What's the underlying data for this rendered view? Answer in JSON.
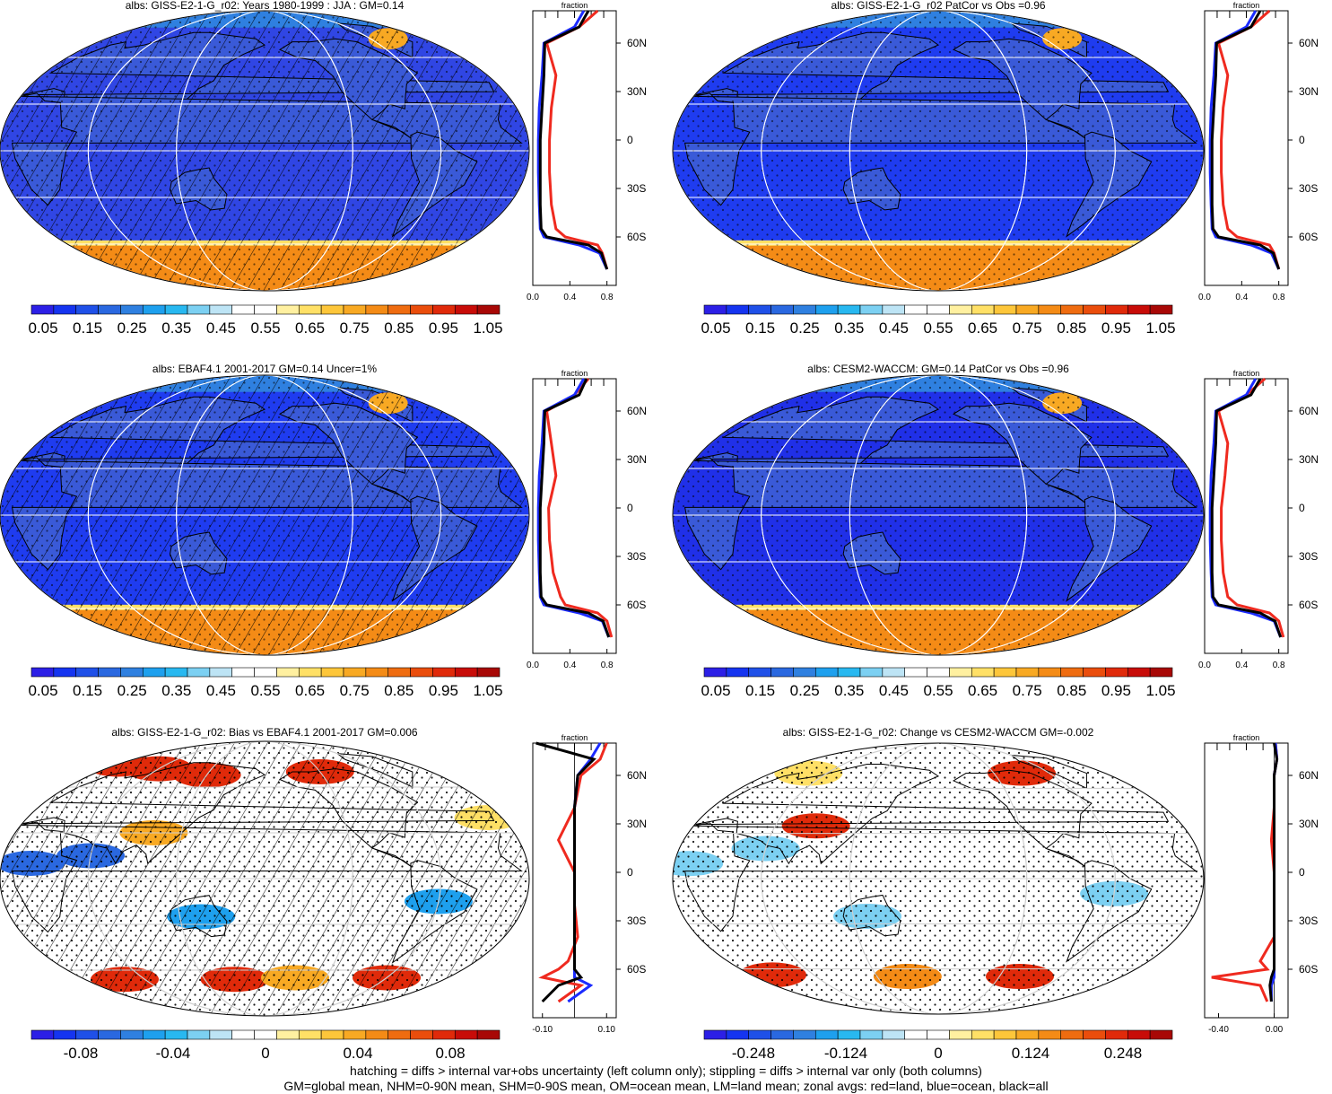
{
  "colors": {
    "land": "#ef2a1f",
    "ocean": "#1b2bff",
    "all": "#000000",
    "grid": "#ffffff",
    "abs_palette": [
      "#2c1fe6",
      "#1534f0",
      "#1f50e8",
      "#2a68e0",
      "#2f80e0",
      "#1ea0ee",
      "#28b8f0",
      "#7cd0f2",
      "#bde4f5",
      "#ffffff",
      "#ffffff",
      "#fff0a0",
      "#ffe066",
      "#fdc63a",
      "#f8a923",
      "#f48b16",
      "#ef6c10",
      "#ea4d0c",
      "#e02a0a",
      "#c80c08",
      "#a80806"
    ],
    "diff_palette": [
      "#2c1fe6",
      "#1534f0",
      "#1f50e8",
      "#2a68e0",
      "#2f80e0",
      "#1ea0ee",
      "#28b8f0",
      "#7cd0f2",
      "#bde4f5",
      "#ffffff",
      "#ffffff",
      "#fff0a0",
      "#ffe066",
      "#fdc63a",
      "#f8a923",
      "#f48b16",
      "#ef6c10",
      "#ea4d0c",
      "#e02a0a",
      "#c80c08",
      "#a80806"
    ]
  },
  "panels": [
    {
      "id": "model",
      "title": "albs: GISS-E2-1-G_r02: Years 1980-1999 : JJA : GM=0.14",
      "fill": "#3046e4",
      "colorbar": {
        "labels": [
          "0.05",
          "0.15",
          "0.25",
          "0.35",
          "0.45",
          "0.55",
          "0.65",
          "0.75",
          "0.85",
          "0.95",
          "1.05"
        ]
      },
      "zonal": {
        "title": "fraction",
        "xticks": [
          "0.0",
          "0.4",
          "0.8"
        ],
        "xrange": [
          0,
          0.9
        ],
        "lat_labels": [
          "60N",
          "30N",
          "0",
          "30S",
          "60S"
        ]
      }
    },
    {
      "id": "model-patcor",
      "title": "albs: GISS-E2-1-G_r02 PatCor vs Obs =0.96",
      "fill": "#1f3cf0",
      "colorbar": {
        "labels": [
          "0.05",
          "0.15",
          "0.25",
          "0.35",
          "0.45",
          "0.55",
          "0.65",
          "0.75",
          "0.85",
          "0.95",
          "1.05"
        ]
      },
      "zonal": {
        "title": "fraction",
        "xticks": [
          "0.0",
          "0.4",
          "0.8"
        ],
        "xrange": [
          0,
          0.9
        ],
        "lat_labels": [
          "60N",
          "30N",
          "0",
          "30S",
          "60S"
        ]
      }
    },
    {
      "id": "obs",
      "title": "albs: EBAF4.1 2001-2017 GM=0.14 Uncer=1%",
      "fill": "#1f3cf0",
      "colorbar": {
        "labels": [
          "0.05",
          "0.15",
          "0.25",
          "0.35",
          "0.45",
          "0.55",
          "0.65",
          "0.75",
          "0.85",
          "0.95",
          "1.05"
        ]
      },
      "zonal": {
        "title": "fraction",
        "xticks": [
          "0.0",
          "0.4",
          "0.8"
        ],
        "xrange": [
          0,
          0.9
        ],
        "lat_labels": [
          "60N",
          "30N",
          "0",
          "30S",
          "60S"
        ]
      }
    },
    {
      "id": "ref-model",
      "title": "albs: CESM2-WACCM: GM=0.14 PatCor vs Obs =0.96",
      "fill": "#2030e8",
      "colorbar": {
        "labels": [
          "0.05",
          "0.15",
          "0.25",
          "0.35",
          "0.45",
          "0.55",
          "0.65",
          "0.75",
          "0.85",
          "0.95",
          "1.05"
        ]
      },
      "zonal": {
        "title": "fraction",
        "xticks": [
          "0.0",
          "0.4",
          "0.8"
        ],
        "xrange": [
          0,
          0.9
        ],
        "lat_labels": [
          "60N",
          "30N",
          "0",
          "30S",
          "60S"
        ]
      }
    },
    {
      "id": "bias",
      "title": "albs: GISS-E2-1-G_r02: Bias vs EBAF4.1 2001-2017 GM=0.006",
      "fill": "#ffffff",
      "colorbar": {
        "labels": [
          "-0.08",
          "-0.04",
          "0",
          "0.04",
          "0.08"
        ]
      },
      "zonal": {
        "title": "fraction",
        "xticks": [
          "-0.10",
          "0.10"
        ],
        "xrange": [
          -0.13,
          0.13
        ],
        "lat_labels": [
          "60N",
          "30N",
          "0",
          "30S",
          "60S"
        ]
      }
    },
    {
      "id": "change",
      "title": "albs: GISS-E2-1-G_r02: Change vs CESM2-WACCM GM=-0.002",
      "fill": "#ffffff",
      "colorbar": {
        "labels": [
          "-0.248",
          "-0.124",
          "0",
          "0.124",
          "0.248"
        ]
      },
      "zonal": {
        "title": "fraction",
        "xticks": [
          "-0.40",
          "0.00"
        ],
        "xrange": [
          -0.5,
          0.1
        ],
        "lat_labels": [
          "60N",
          "30N",
          "0",
          "30S",
          "60S"
        ]
      }
    }
  ],
  "chart_data": [
    {
      "type": "line",
      "panel": "model",
      "x_label": "fraction",
      "lat": [
        -80,
        -70,
        -65,
        -60,
        -55,
        -40,
        -20,
        0,
        20,
        40,
        60,
        70,
        80
      ],
      "series": [
        {
          "name": "land",
          "values": [
            0.8,
            0.75,
            0.7,
            0.35,
            0.25,
            0.2,
            0.18,
            0.18,
            0.2,
            0.25,
            0.15,
            0.5,
            0.7
          ]
        },
        {
          "name": "ocean",
          "values": [
            0.8,
            0.72,
            0.5,
            0.12,
            0.08,
            0.07,
            0.06,
            0.06,
            0.07,
            0.1,
            0.12,
            0.45,
            0.55
          ]
        },
        {
          "name": "all",
          "values": [
            0.8,
            0.74,
            0.6,
            0.15,
            0.09,
            0.08,
            0.08,
            0.08,
            0.1,
            0.12,
            0.13,
            0.5,
            0.6
          ]
        }
      ]
    },
    {
      "type": "line",
      "panel": "model-patcor",
      "x_label": "fraction",
      "lat": [
        -80,
        -70,
        -65,
        -60,
        -55,
        -40,
        -20,
        0,
        20,
        40,
        60,
        70,
        80
      ],
      "series": [
        {
          "name": "land",
          "values": [
            0.8,
            0.75,
            0.7,
            0.35,
            0.25,
            0.2,
            0.18,
            0.18,
            0.2,
            0.25,
            0.15,
            0.5,
            0.7
          ]
        },
        {
          "name": "ocean",
          "values": [
            0.8,
            0.72,
            0.5,
            0.12,
            0.08,
            0.07,
            0.06,
            0.06,
            0.07,
            0.1,
            0.12,
            0.45,
            0.55
          ]
        },
        {
          "name": "all",
          "values": [
            0.8,
            0.74,
            0.6,
            0.15,
            0.09,
            0.08,
            0.08,
            0.08,
            0.1,
            0.12,
            0.13,
            0.5,
            0.6
          ]
        }
      ]
    },
    {
      "type": "line",
      "panel": "obs",
      "x_label": "fraction",
      "lat": [
        -80,
        -70,
        -65,
        -60,
        -55,
        -40,
        -20,
        0,
        20,
        40,
        60,
        70,
        80
      ],
      "series": [
        {
          "name": "land",
          "values": [
            0.85,
            0.8,
            0.7,
            0.35,
            0.3,
            0.22,
            0.18,
            0.17,
            0.25,
            0.2,
            0.15,
            0.45,
            0.6
          ]
        },
        {
          "name": "ocean",
          "values": [
            0.82,
            0.75,
            0.5,
            0.12,
            0.08,
            0.07,
            0.06,
            0.06,
            0.07,
            0.1,
            0.12,
            0.45,
            0.55
          ]
        },
        {
          "name": "all",
          "values": [
            0.82,
            0.76,
            0.6,
            0.15,
            0.09,
            0.08,
            0.08,
            0.08,
            0.1,
            0.12,
            0.13,
            0.5,
            0.58
          ]
        }
      ]
    },
    {
      "type": "line",
      "panel": "ref-model",
      "x_label": "fraction",
      "lat": [
        -80,
        -70,
        -65,
        -60,
        -55,
        -40,
        -20,
        0,
        20,
        40,
        60,
        70,
        80
      ],
      "series": [
        {
          "name": "land",
          "values": [
            0.85,
            0.8,
            0.7,
            0.35,
            0.25,
            0.2,
            0.18,
            0.18,
            0.22,
            0.25,
            0.15,
            0.45,
            0.65
          ]
        },
        {
          "name": "ocean",
          "values": [
            0.82,
            0.75,
            0.5,
            0.12,
            0.08,
            0.07,
            0.06,
            0.06,
            0.07,
            0.1,
            0.12,
            0.45,
            0.55
          ]
        },
        {
          "name": "all",
          "values": [
            0.82,
            0.76,
            0.6,
            0.15,
            0.09,
            0.08,
            0.08,
            0.08,
            0.1,
            0.12,
            0.13,
            0.5,
            0.6
          ]
        }
      ]
    },
    {
      "type": "line",
      "panel": "bias",
      "x_label": "fraction",
      "lat": [
        -80,
        -70,
        -65,
        -60,
        -55,
        -40,
        -20,
        0,
        20,
        40,
        60,
        70,
        80
      ],
      "series": [
        {
          "name": "land",
          "values": [
            -0.05,
            0.02,
            -0.1,
            -0.05,
            -0.02,
            0.01,
            0.0,
            0.0,
            -0.05,
            0.0,
            0.02,
            0.08,
            0.1
          ]
        },
        {
          "name": "ocean",
          "values": [
            -0.02,
            0.05,
            0.0,
            0.0,
            0.0,
            0.0,
            0.0,
            0.0,
            0.0,
            0.0,
            0.01,
            0.05,
            0.08
          ]
        },
        {
          "name": "all",
          "values": [
            -0.1,
            -0.05,
            0.02,
            0.0,
            0.0,
            0.0,
            0.0,
            0.0,
            0.0,
            0.0,
            0.01,
            0.06,
            -0.12
          ]
        }
      ]
    },
    {
      "type": "line",
      "panel": "change",
      "x_label": "fraction",
      "lat": [
        -80,
        -70,
        -65,
        -60,
        -55,
        -40,
        -20,
        0,
        20,
        40,
        60,
        70,
        80
      ],
      "series": [
        {
          "name": "land",
          "values": [
            -0.05,
            -0.1,
            -0.45,
            -0.05,
            -0.1,
            0.0,
            0.0,
            0.0,
            -0.02,
            0.0,
            0.0,
            0.02,
            0.01
          ]
        },
        {
          "name": "ocean",
          "values": [
            -0.02,
            -0.02,
            0.0,
            0.0,
            0.0,
            0.0,
            0.0,
            0.0,
            0.0,
            0.0,
            0.0,
            0.02,
            0.01
          ]
        },
        {
          "name": "all",
          "values": [
            -0.02,
            -0.03,
            -0.02,
            0.0,
            0.0,
            0.0,
            0.0,
            0.0,
            0.0,
            0.0,
            0.0,
            0.02,
            0.0
          ]
        }
      ]
    }
  ],
  "footer": {
    "line1": "hatching = diffs > internal var+obs uncertainty (left column only); stippling = diffs > internal var only (both columns)",
    "line2": "GM=global mean, NHM=0-90N mean, SHM=0-90S mean, OM=ocean mean, LM=land mean; zonal avgs: red=land, blue=ocean, black=all"
  }
}
